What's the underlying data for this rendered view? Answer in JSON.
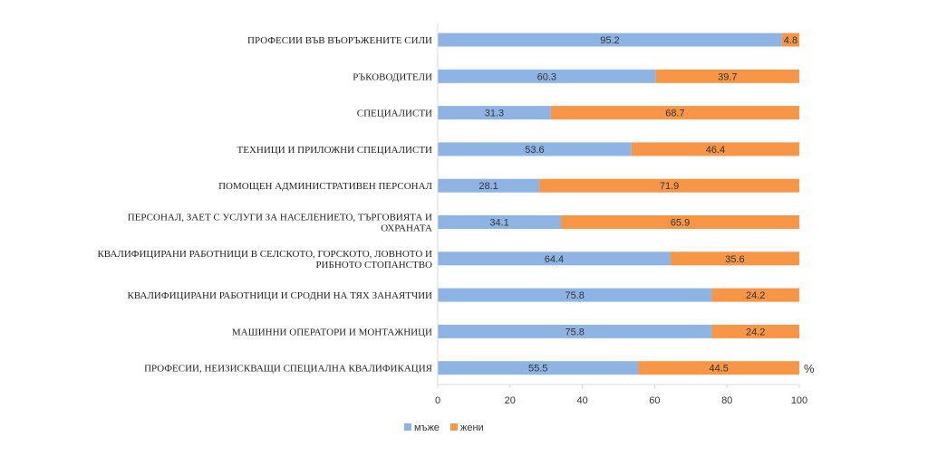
{
  "chart_data": {
    "type": "bar",
    "orientation": "horizontal",
    "stacked": true,
    "title": "",
    "unit": "%",
    "xlim": [
      0,
      100
    ],
    "xticks": [
      0,
      20,
      40,
      60,
      80,
      100
    ],
    "grid": false,
    "legend_position": "bottom",
    "categories": [
      [
        "ПРОФЕСИИ ВЪВ ВЪОРЪЖЕНИТЕ СИЛИ"
      ],
      [
        "РЪКОВОДИТЕЛИ"
      ],
      [
        "СПЕЦИАЛИСТИ"
      ],
      [
        "ТЕХНИЦИ И ПРИЛОЖНИ СПЕЦИАЛИСТИ"
      ],
      [
        "ПОМОЩЕН АДМИНИСТРАТИВЕН ПЕРСОНАЛ"
      ],
      [
        "ПЕРСОНАЛ, ЗАЕТ С УСЛУГИ ЗА НАСЕЛЕНИЕТО, ТЪРГОВИЯТА И",
        "ОХРАНАТА"
      ],
      [
        "КВАЛИФИЦИРАНИ РАБОТНИЦИ В СЕЛСКОТО, ГОРСКОТО, ЛОВНОТО И",
        "РИБНОТО СТОПАНСТВО"
      ],
      [
        "КВАЛИФИЦИРАНИ РАБОТНИЦИ И СРОДНИ НА ТЯХ ЗАНАЯТЧИИ"
      ],
      [
        "МАШИННИ ОПЕРАТОРИ И МОНТАЖНИЦИ"
      ],
      [
        "ПРОФЕСИИ, НЕИЗИСКВАЩИ СПЕЦИАЛНА КВАЛИФИКАЦИЯ"
      ]
    ],
    "series": [
      {
        "name": "мъже",
        "color": "#8EB4E3",
        "values": [
          95.2,
          60.3,
          31.3,
          53.6,
          28.1,
          34.1,
          64.4,
          75.8,
          75.8,
          55.5
        ]
      },
      {
        "name": "жени",
        "color": "#F79646",
        "values": [
          4.8,
          39.7,
          68.7,
          46.4,
          71.9,
          65.9,
          35.6,
          24.2,
          24.2,
          44.5
        ]
      }
    ]
  }
}
